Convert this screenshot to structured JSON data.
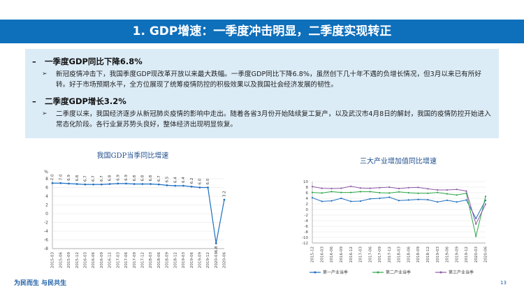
{
  "header": {
    "title": "1. GDP增速：一季度冲击明显，二季度实现转正"
  },
  "content": {
    "items": [
      {
        "marker": "–",
        "heading": "一季度GDP同比下降6.8%",
        "bullet_marker": "➢",
        "text": "新冠疫情冲击下，我国季度GDP现改革开放以来最大跌幅。一季度GDP同比下降6.8%，虽然创下几十年不遇的负增长情况，但3月以来已有所好转。好于市场预期水平，全方位展现了统筹疫情防控的积极效果以及我国社会经济发展的韧性。"
      },
      {
        "marker": "–",
        "heading": "二季度GDP增长3.2%",
        "bullet_marker": "➢",
        "text": "二季度以来，我国经济逐步从新冠肺炎疫情的影响中走出。随着各省3月份开始陆续复工复产，以及武汉市4月8日的解封，我国的疫情防控开始进入常态化阶段。各行业复苏势头良好，整体经济出现明显恢复。"
      }
    ]
  },
  "chart_data": [
    {
      "type": "line",
      "title": "我国GDP当季同比增速",
      "ylabel": "%",
      "ylim": [
        -8,
        8
      ],
      "yticks": [
        -8,
        -6,
        -4,
        -2,
        0,
        2,
        4,
        6,
        8
      ],
      "grid": true,
      "categories": [
        "2015-03",
        "2015-06",
        "2015-09",
        "2015-12",
        "2016-03",
        "2016-06",
        "2016-09",
        "2016-12",
        "2017-03",
        "2017-06",
        "2017-09",
        "2017-12",
        "2018-03",
        "2018-06",
        "2018-09",
        "2018-12",
        "2019-03",
        "2019-06",
        "2019-09",
        "2019-12",
        "2020-03",
        "2020-06"
      ],
      "series": [
        {
          "color": "#1f6fc0",
          "values": [
            7.0,
            7.0,
            6.9,
            6.8,
            6.7,
            6.7,
            6.7,
            6.8,
            6.9,
            6.9,
            6.8,
            6.8,
            6.8,
            6.7,
            6.5,
            6.4,
            6.4,
            6.2,
            6.0,
            6.0,
            -6.8,
            3.2
          ],
          "labels": [
            "7.0",
            "7.0",
            "6.9",
            "6.8",
            "6.7",
            "6.7",
            "6.7",
            "6.8",
            "6.9",
            "6.9",
            "6.8",
            "6.8",
            "6.8",
            "6.7",
            "6.5",
            "6.4",
            "6.4",
            "6.2",
            "6.0",
            "6.0",
            "-6.8",
            "3.2"
          ]
        }
      ]
    },
    {
      "type": "line",
      "title": "三大产业增加值同比增速",
      "ylim": [
        -12,
        10
      ],
      "yticks": [
        -12,
        -10,
        -8,
        -6,
        -4,
        -2,
        0,
        2,
        4,
        6,
        8,
        10
      ],
      "grid": true,
      "legend": "bottom",
      "categories": [
        "2015-12",
        "2016-03",
        "2016-06",
        "2016-09",
        "2016-12",
        "2017-03",
        "2017-06",
        "2017-09",
        "2017-12",
        "2018-03",
        "2018-06",
        "2018-09",
        "2018-12",
        "2019-03",
        "2019-06",
        "2019-09",
        "2019-12",
        "2020-03",
        "2020-06"
      ],
      "series": [
        {
          "name": "第一产业当季",
          "color": "#1f6fc0",
          "values": [
            4.2,
            2.9,
            3.1,
            4.0,
            2.9,
            3.0,
            3.8,
            4.0,
            4.4,
            3.2,
            3.4,
            3.6,
            3.5,
            2.7,
            3.3,
            2.7,
            3.4,
            -3.2,
            3.3
          ]
        },
        {
          "name": "第二产业当季",
          "color": "#2ea84b",
          "values": [
            6.1,
            5.9,
            6.4,
            6.1,
            6.1,
            6.4,
            6.4,
            6.0,
            5.9,
            6.3,
            6.0,
            5.8,
            5.8,
            6.1,
            5.6,
            5.2,
            5.8,
            -9.6,
            4.7
          ]
        },
        {
          "name": "第三产业当季",
          "color": "#8e5aa8",
          "values": [
            8.2,
            7.6,
            7.5,
            7.6,
            8.3,
            7.7,
            7.6,
            7.8,
            8.0,
            7.5,
            7.8,
            7.9,
            7.4,
            7.0,
            7.0,
            7.2,
            6.6,
            -5.2,
            1.9
          ]
        }
      ]
    }
  ],
  "footer": {
    "slogan": "为民而生 与民共生",
    "page_number": "13"
  }
}
